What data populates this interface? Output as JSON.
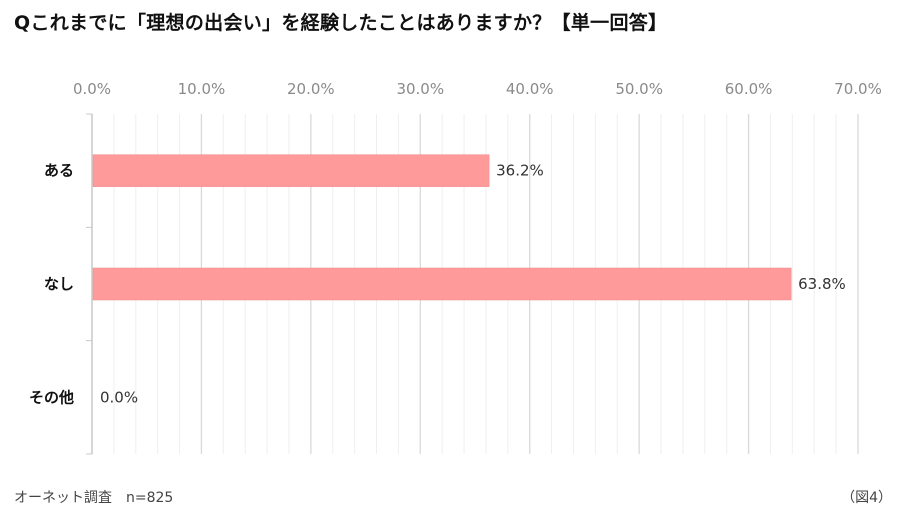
{
  "title": "Qこれまでに「理想の出会い」を経験したことはありますか？【単一回答】",
  "footer": {
    "source": "オーネット調査　n=825",
    "figure": "（図4）"
  },
  "colors": {
    "bar": "#ff9a9a",
    "grid_major": "#d9d9d9",
    "grid_minor": "#efefef",
    "axis": "#c8c8c8"
  },
  "chart_data": {
    "type": "bar",
    "orientation": "horizontal",
    "categories": [
      "ある",
      "なし",
      "その他"
    ],
    "values": [
      36.2,
      63.8,
      0.0
    ],
    "value_labels": [
      "36.2%",
      "63.8%",
      "0.0%"
    ],
    "xlim": [
      0,
      70
    ],
    "x_ticks": [
      "0.0%",
      "10.0%",
      "20.0%",
      "30.0%",
      "40.0%",
      "50.0%",
      "60.0%",
      "70.0%"
    ],
    "x_tick_values": [
      0,
      10,
      20,
      30,
      40,
      50,
      60,
      70
    ],
    "grid": true,
    "xaxis_position": "top"
  }
}
